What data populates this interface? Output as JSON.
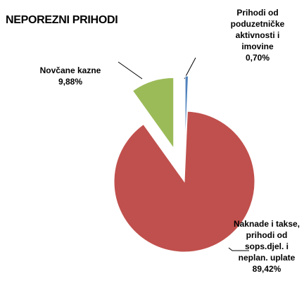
{
  "chart_data": {
    "type": "pie",
    "title": "NEPOREZNI PRIHODI",
    "categories": [
      "Prihodi od poduzetničke aktivnosti i imovine",
      "Naknade i takse, prihodi od sops.djel. i neplan. uplate",
      "Novčane kazne"
    ],
    "values": [
      0.7,
      89.42,
      9.88
    ],
    "value_labels": [
      "0,70%",
      "89,42%",
      "9,88%"
    ],
    "colors": [
      "#4f81bd",
      "#c0504d",
      "#9bbb59"
    ]
  }
}
